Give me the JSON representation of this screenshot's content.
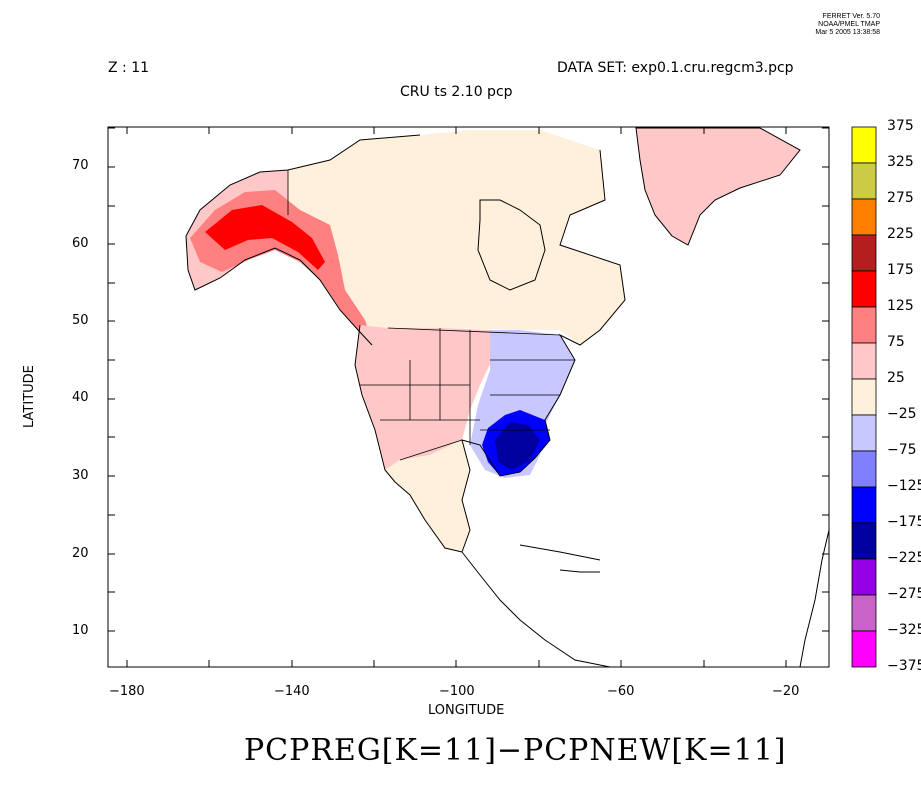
{
  "header": {
    "version_lines": [
      "FERRET Ver. 5.70",
      "NOAA/PMEL TMAP",
      "Mar  5 2005 13:38:58"
    ],
    "z_label": "Z : 11",
    "dataset": "DATA SET: exp0.1.cru.regcm3.pcp",
    "subtitle": "CRU ts 2.10 pcp"
  },
  "axes": {
    "xlabel": "LONGITUDE",
    "ylabel": "LATITUDE",
    "x_ticks": [
      "−180",
      "−140",
      "−100",
      "−60",
      "−20"
    ],
    "y_ticks": [
      "70",
      "60",
      "50",
      "40",
      "30",
      "20",
      "10"
    ]
  },
  "map": {
    "lon_range": [
      -185,
      -10
    ],
    "lat_range": [
      5,
      75
    ],
    "regions": [
      {
        "name": "greenland",
        "color": "#ffc8c8"
      },
      {
        "name": "canada",
        "color": "#fff0dc"
      },
      {
        "name": "alaska",
        "color": "#ffc8c8"
      },
      {
        "name": "alaska-coast",
        "color": "#ff8080"
      },
      {
        "name": "alaska-peaks",
        "color": "#ff0000"
      },
      {
        "name": "west-usa",
        "color": "#ffc8c8"
      },
      {
        "name": "east-usa",
        "color": "#c8c8ff"
      },
      {
        "name": "southeast-core",
        "color": "#0000ff"
      },
      {
        "name": "southeast-deep",
        "color": "#0000a0"
      },
      {
        "name": "mexico",
        "color": "#fff0dc"
      }
    ]
  },
  "colorbar": {
    "colors": [
      "#ffff00",
      "#cccc44",
      "#ff8000",
      "#b41e1e",
      "#ff0000",
      "#ff8080",
      "#ffc8c8",
      "#fff0dc",
      "#c8c8ff",
      "#8080ff",
      "#0000ff",
      "#0000a0",
      "#9600e6",
      "#c864c8",
      "#ff00ff"
    ],
    "labels": [
      "375",
      "325",
      "275",
      "225",
      "175",
      "125",
      "75",
      "25",
      "−25",
      "−75",
      "−125",
      "−175",
      "−225",
      "−275",
      "−325",
      "−375"
    ]
  },
  "formula": "PCPREG[K=11]−PCPNEW[K=11]"
}
